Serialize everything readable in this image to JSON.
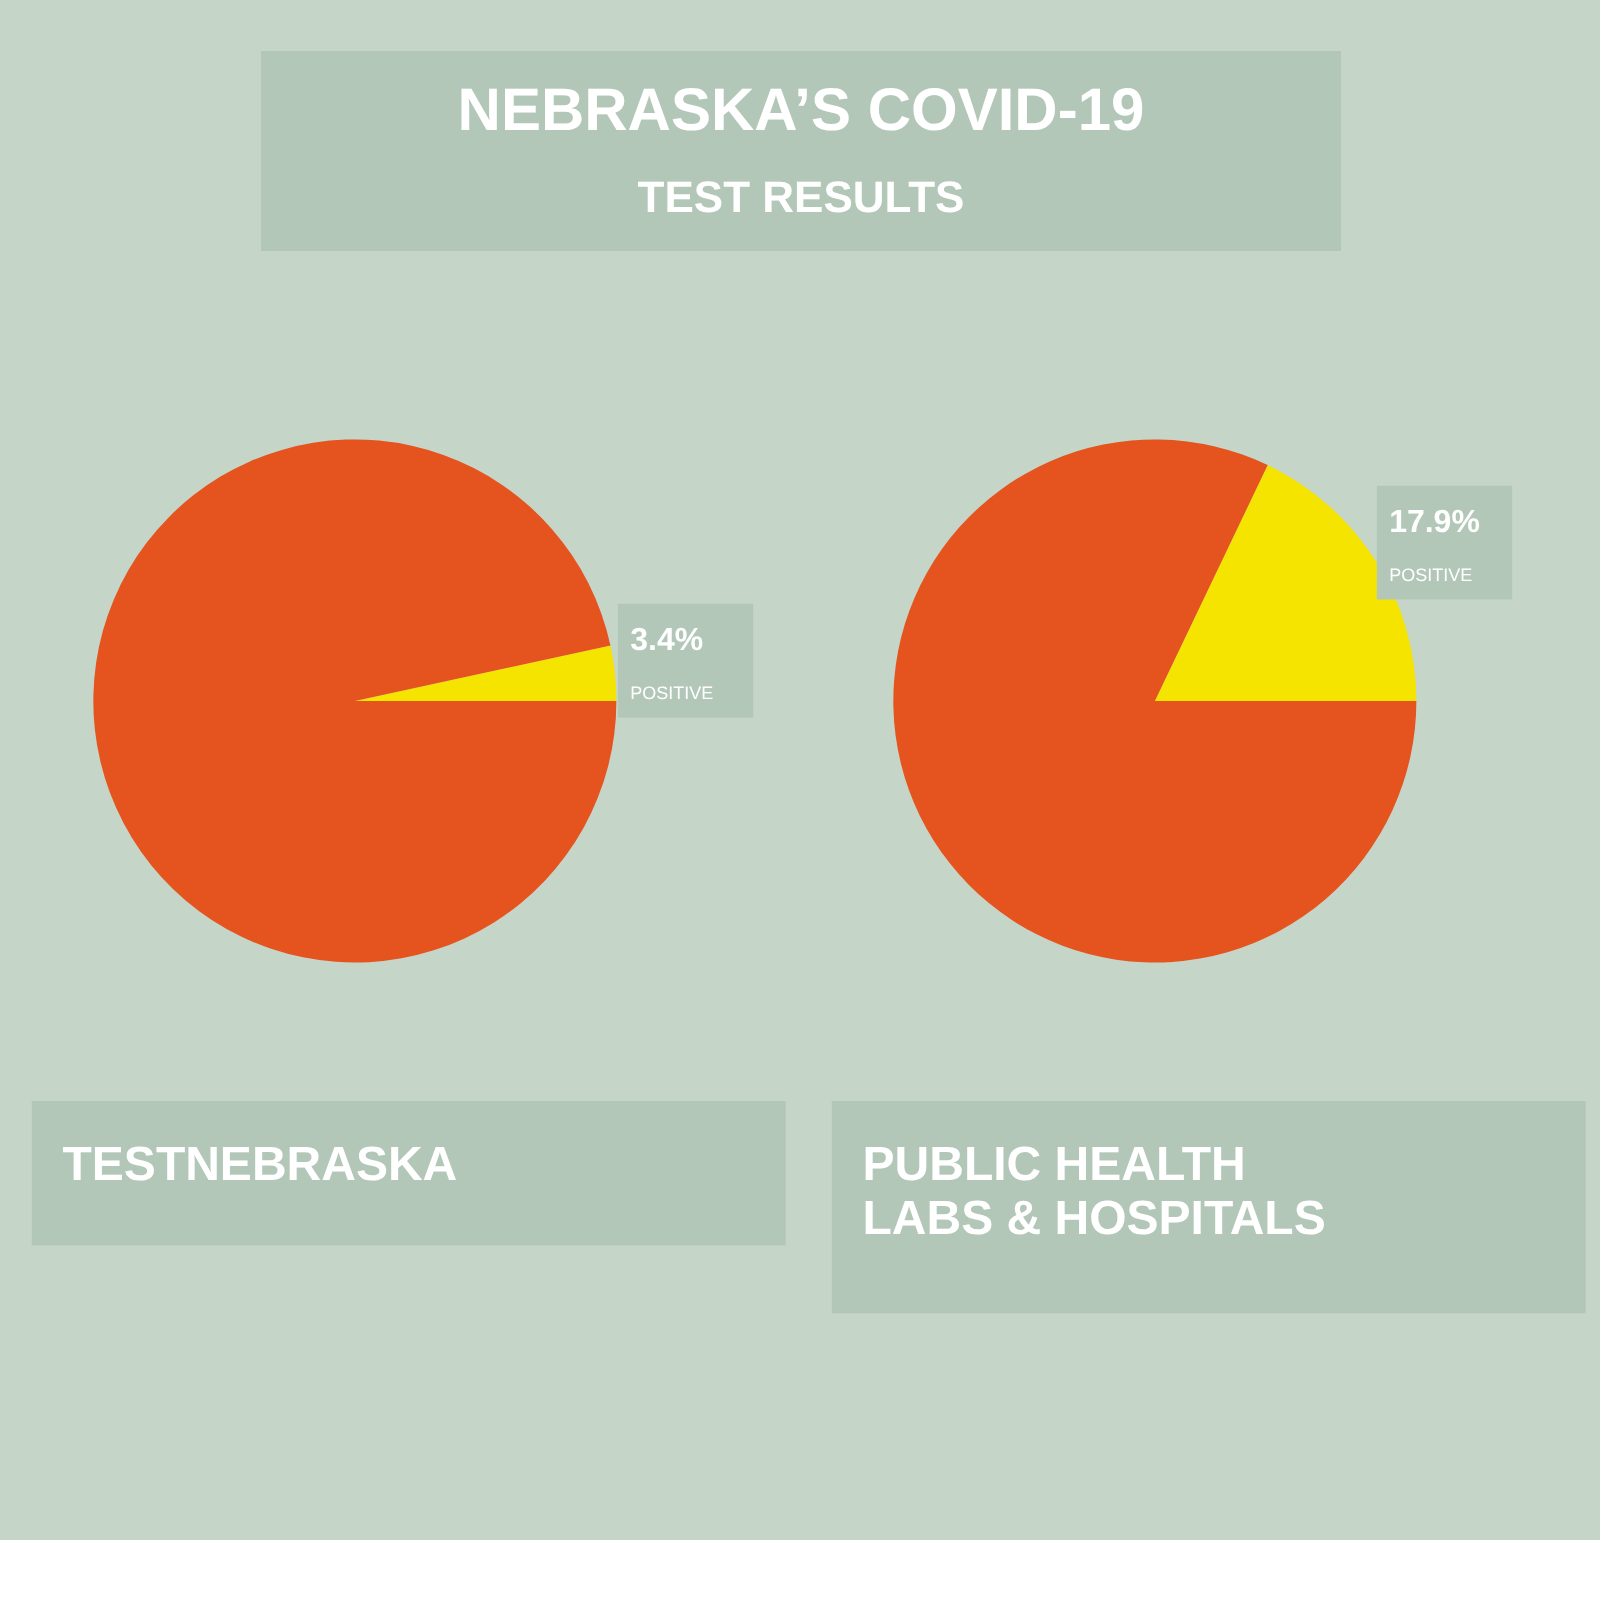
{
  "chart_data": [
    {
      "type": "other",
      "title": "NEBRASKA’S COVID-19",
      "subtitle": "TEST RESULTS"
    },
    {
      "type": "pie",
      "title": "TESTNEBRASKA",
      "categories": [
        "POSITIVE",
        null
      ],
      "values": [
        3.4,
        96.6
      ],
      "colors": [
        "#f5e300",
        "#e5541e"
      ],
      "value_labels": [
        "3.4%",
        null
      ]
    },
    {
      "type": "pie",
      "title": "PUBLIC HEALTH\nLABS & HOSPITALS",
      "categories": [
        "POSITIVE",
        null
      ],
      "values": [
        17.9,
        82.1
      ],
      "colors": [
        "#f5e300",
        "#e5541e"
      ],
      "value_labels": [
        "17.9%",
        null
      ]
    }
  ]
}
